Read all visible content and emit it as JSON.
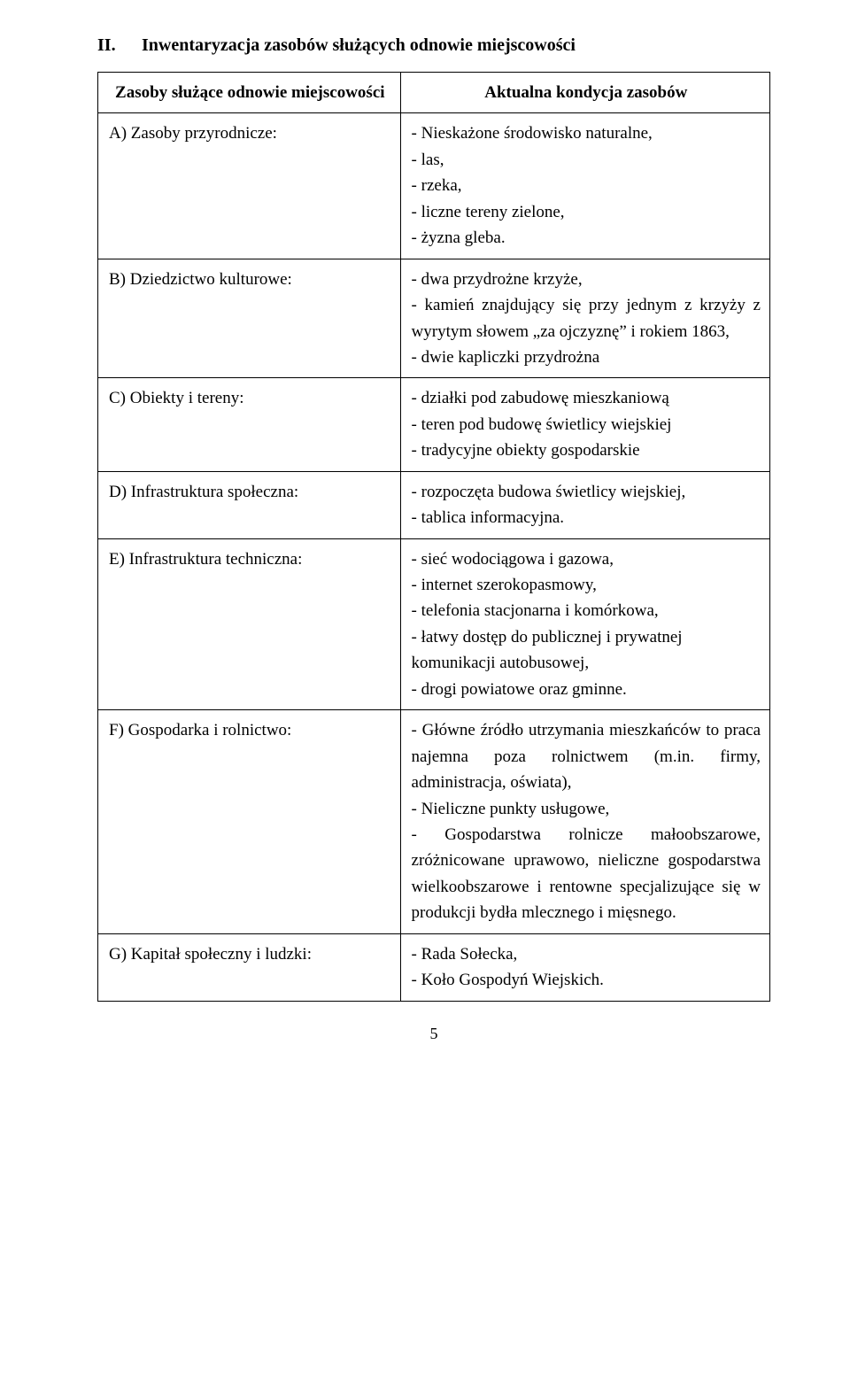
{
  "heading": {
    "number": "II.",
    "text": "Inwentaryzacja zasobów służących odnowie miejscowości"
  },
  "table": {
    "header_left": "Zasoby służące odnowie miejscowości",
    "header_right": "Aktualna kondycja zasobów",
    "rows": [
      {
        "label": "A) Zasoby przyrodnicze:",
        "content": "- Nieskażone środowisko naturalne,\n- las,\n- rzeka,\n- liczne tereny zielone,\n- żyzna gleba."
      },
      {
        "label": "B) Dziedzictwo kulturowe:",
        "content": "-  dwa przydrożne krzyże,\n- kamień znajdujący się przy jednym z krzyży z wyrytym słowem „za ojczyznę” i rokiem 1863,\n- dwie kapliczki przydrożna"
      },
      {
        "label": "C) Obiekty i tereny:",
        "content": "- działki pod zabudowę mieszkaniową\n- teren pod budowę świetlicy wiejskiej\n- tradycyjne obiekty gospodarskie"
      },
      {
        "label": "D) Infrastruktura społeczna:",
        "content": "- rozpoczęta budowa świetlicy wiejskiej,\n- tablica informacyjna."
      },
      {
        "label": "E) Infrastruktura techniczna:",
        "content": "- sieć wodociągowa i gazowa,\n- internet szerokopasmowy,\n- telefonia stacjonarna i komórkowa,\n- łatwy dostęp do publicznej i prywatnej komunikacji autobusowej,\n- drogi powiatowe oraz gminne."
      },
      {
        "label": "F) Gospodarka i rolnictwo:",
        "content": "- Główne źródło utrzymania mieszkańców to praca najemna poza rolnictwem (m.in. firmy, administracja, oświata),\n- Nieliczne punkty usługowe,\n- Gospodarstwa rolnicze małoobszarowe, zróżnicowane uprawowo, nieliczne gospodarstwa wielkoobszarowe i rentowne specjalizujące się w produkcji bydła mlecznego i mięsnego."
      },
      {
        "label": "G) Kapitał społeczny i ludzki:",
        "content": "- Rada Sołecka,\n- Koło Gospodyń Wiejskich."
      }
    ]
  },
  "page_number": "5"
}
